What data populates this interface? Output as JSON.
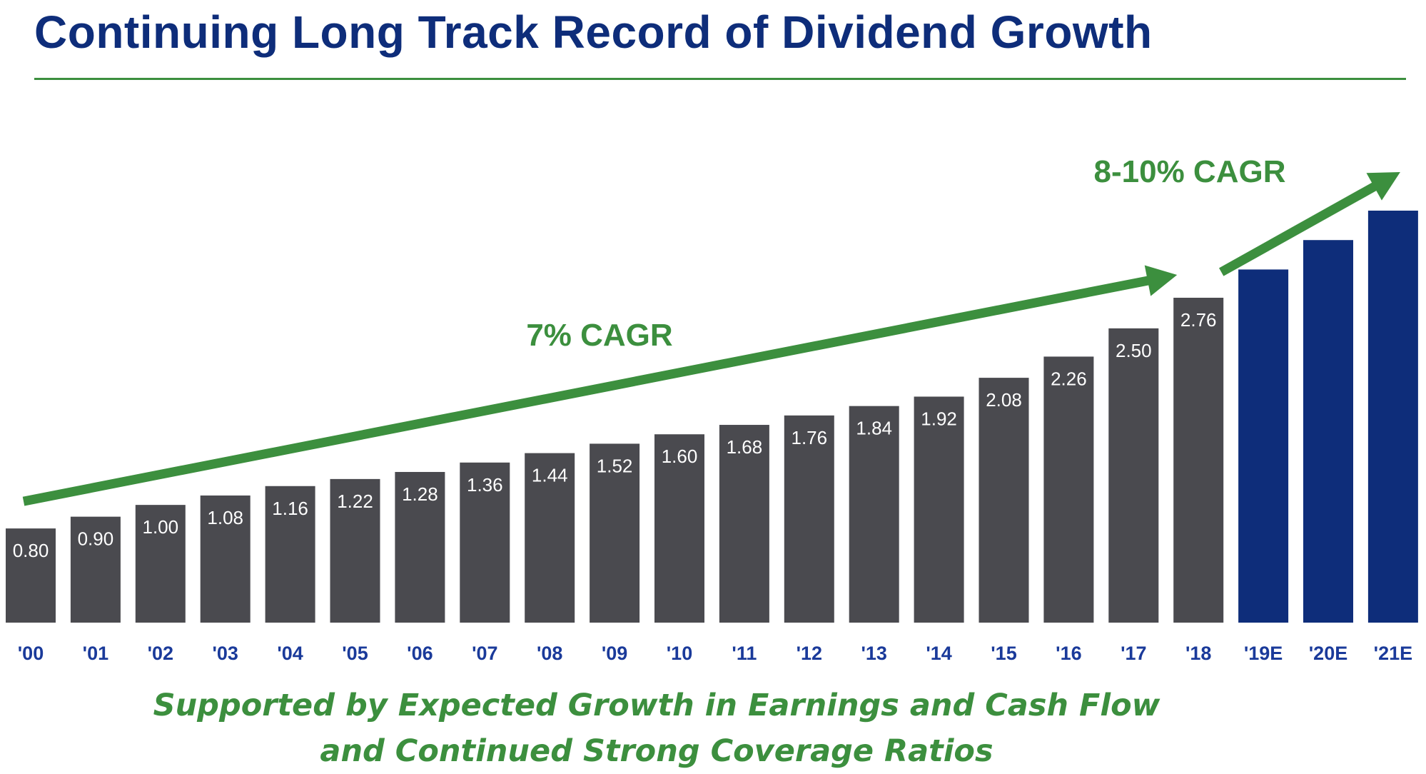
{
  "title": "Continuing Long Track Record of Dividend Growth",
  "colors": {
    "title": "#0e2d7a",
    "actual_bar": "#4a4a4f",
    "estimate_bar": "#0e2d7a",
    "accent_green": "#3c8f3e",
    "axis_label": "#1a3a9a",
    "bar_label": "#ffffff"
  },
  "chart_data": {
    "type": "bar",
    "categories": [
      "'00",
      "'01",
      "'02",
      "'03",
      "'04",
      "'05",
      "'06",
      "'07",
      "'08",
      "'09",
      "'10",
      "'11",
      "'12",
      "'13",
      "'14",
      "'15",
      "'16",
      "'17",
      "'18",
      "'19E",
      "'20E",
      "'21E"
    ],
    "values": [
      0.8,
      0.9,
      1.0,
      1.08,
      1.16,
      1.22,
      1.28,
      1.36,
      1.44,
      1.52,
      1.6,
      1.68,
      1.76,
      1.84,
      1.92,
      2.08,
      2.26,
      2.5,
      2.76,
      3.0,
      3.25,
      3.5
    ],
    "value_labels": [
      "0.80",
      "0.90",
      "1.00",
      "1.08",
      "1.16",
      "1.22",
      "1.28",
      "1.36",
      "1.44",
      "1.52",
      "1.60",
      "1.68",
      "1.76",
      "1.84",
      "1.92",
      "2.08",
      "2.26",
      "2.50",
      "2.76",
      "",
      "",
      ""
    ],
    "estimate_from_index": 19,
    "ylim": [
      0,
      3.5
    ],
    "grid": false,
    "annotations": [
      {
        "text": "7% CAGR",
        "type": "trend-arrow",
        "from_category": "'00",
        "to_category": "'18"
      },
      {
        "text": "8-10% CAGR",
        "type": "trend-arrow",
        "from_category": "'18",
        "to_category": "'21E"
      }
    ]
  },
  "footer": {
    "line1": "Supported by Expected Growth in Earnings and Cash Flow",
    "line2": "and Continued Strong Coverage Ratios"
  }
}
